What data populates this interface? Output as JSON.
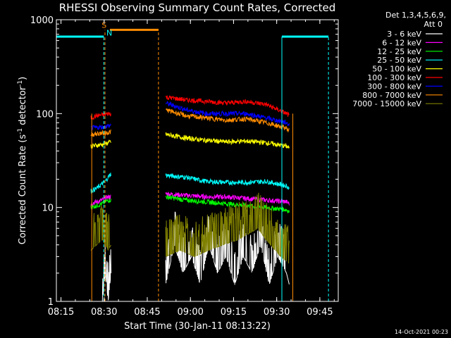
{
  "chart_data": {
    "type": "line",
    "title": "RHESSI Observing Summary Count Rates, Corrected",
    "xlabel": "Start Time (30-Jan-11 08:13:22)",
    "ylabel_parts": [
      "Corrected Count Rate (s",
      "-1",
      " detector",
      "-1",
      ")"
    ],
    "x_unit": "minutes since 08:13:22",
    "xlim": [
      0,
      98
    ],
    "ylim": [
      1,
      1000
    ],
    "yscale": "log",
    "x_ticks": [
      {
        "label": "08:15",
        "x": 1.6
      },
      {
        "label": "08:30",
        "x": 16.6
      },
      {
        "label": "08:45",
        "x": 31.6
      },
      {
        "label": "09:00",
        "x": 46.6
      },
      {
        "label": "09:15",
        "x": 61.6
      },
      {
        "label": "09:30",
        "x": 76.6
      },
      {
        "label": "09:45",
        "x": 91.6
      }
    ],
    "y_ticks": [
      {
        "label": "1",
        "y": 1
      },
      {
        "label": "10",
        "y": 10
      },
      {
        "label": "100",
        "y": 100
      },
      {
        "label": "1000",
        "y": 1000
      }
    ],
    "legend_header": [
      "Det 1,3,4,5,6,9,",
      "Att 0"
    ],
    "series": [
      {
        "name": "3 - 6 keV",
        "color": "#ffffff",
        "segments": [
          {
            "x": [
              16,
              17,
              18,
              19
            ],
            "y": [
              1,
              2,
              1,
              2
            ]
          },
          {
            "x": [
              38,
              41,
              44,
              47,
              50,
              53,
              56,
              59,
              62,
              65,
              68,
              71,
              74,
              77,
              80,
              81
            ],
            "y": [
              1.5,
              4,
              2,
              3,
              1.5,
              4,
              2,
              3,
              1.5,
              3,
              2,
              4,
              1.5,
              3,
              2,
              1.5
            ]
          }
        ]
      },
      {
        "name": "6 - 12 keV",
        "color": "#ff00ff",
        "segments": [
          {
            "x": [
              12,
              14,
              16,
              17,
              18,
              19
            ],
            "y": [
              11,
              11.5,
              12,
              12.5,
              13,
              13
            ]
          },
          {
            "x": [
              38,
              45,
              52,
              59,
              66,
              73,
              80,
              81
            ],
            "y": [
              14,
              13.5,
              13,
              13,
              12.5,
              12,
              11.5,
              11
            ]
          }
        ]
      },
      {
        "name": "12 - 25 keV",
        "color": "#00ff00",
        "segments": [
          {
            "x": [
              12,
              14,
              16,
              17,
              18,
              19
            ],
            "y": [
              10,
              10.5,
              11,
              11.5,
              12,
              12
            ]
          },
          {
            "x": [
              38,
              45,
              52,
              59,
              66,
              73,
              80,
              81
            ],
            "y": [
              13,
              12,
              11.5,
              11,
              10.5,
              10,
              9.5,
              9
            ]
          }
        ]
      },
      {
        "name": "25 - 50 keV",
        "color": "#00ffff",
        "segments": [
          {
            "x": [
              12,
              14,
              16,
              17,
              18,
              19
            ],
            "y": [
              15,
              16,
              18,
              19,
              21,
              23
            ]
          },
          {
            "x": [
              38,
              45,
              52,
              59,
              66,
              73,
              80,
              81
            ],
            "y": [
              22,
              21,
              19,
              18.5,
              18.5,
              19,
              17,
              16
            ]
          }
        ]
      },
      {
        "name": "50 - 100 keV",
        "color": "#ffff00",
        "segments": [
          {
            "x": [
              12,
              14,
              16,
              17,
              18,
              19
            ],
            "y": [
              45,
              46,
              47,
              48,
              49,
              50
            ]
          },
          {
            "x": [
              38,
              45,
              52,
              59,
              66,
              73,
              80,
              81
            ],
            "y": [
              60,
              55,
              52,
              50,
              51,
              49,
              45,
              43
            ]
          }
        ]
      },
      {
        "name": "100 - 300 keV",
        "color": "#ff0000",
        "segments": [
          {
            "x": [
              12,
              14,
              16,
              17,
              18,
              19
            ],
            "y": [
              90,
              95,
              97,
              98,
              100,
              100
            ]
          },
          {
            "x": [
              38,
              45,
              52,
              59,
              66,
              73,
              80,
              81
            ],
            "y": [
              150,
              140,
              135,
              130,
              135,
              125,
              100,
              95
            ]
          }
        ]
      },
      {
        "name": "300 - 800 keV",
        "color": "#0000ff",
        "segments": [
          {
            "x": [
              12,
              14,
              16,
              17,
              18,
              19
            ],
            "y": [
              70,
              71,
              72,
              73,
              74,
              75
            ]
          },
          {
            "x": [
              38,
              45,
              52,
              59,
              66,
              73,
              80,
              81
            ],
            "y": [
              130,
              110,
              100,
              100,
              100,
              90,
              80,
              76
            ]
          }
        ]
      },
      {
        "name": "800 - 7000 keV",
        "color": "#ff8c00",
        "segments": [
          {
            "x": [
              12,
              14,
              16,
              17,
              18,
              19
            ],
            "y": [
              60,
              61,
              62,
              62,
              63,
              64
            ]
          },
          {
            "x": [
              38,
              45,
              52,
              59,
              66,
              73,
              80,
              81
            ],
            "y": [
              110,
              95,
              90,
              85,
              88,
              80,
              70,
              65
            ]
          }
        ]
      },
      {
        "name": "7000 - 15000 keV",
        "color": "#808000",
        "segments": [
          {
            "x": [
              12,
              14,
              16,
              17,
              18,
              19
            ],
            "y": [
              3.5,
              4,
              4.5,
              4,
              3.5,
              4
            ]
          },
          {
            "x": [
              38,
              43,
              48,
              53,
              58,
              63,
              68,
              70,
              73,
              78,
              81
            ],
            "y": [
              3,
              3.5,
              3,
              3.5,
              4,
              4.5,
              5.5,
              6,
              4.5,
              3,
              2.5
            ]
          }
        ]
      }
    ],
    "annotations": [
      {
        "label": "S",
        "color": "#ff8c00",
        "x": 16.6,
        "y": 820
      },
      {
        "label": "N",
        "color": "#00ffff",
        "x": 18.4,
        "y": 680
      }
    ],
    "timestamp": "14-Oct-2021 00:23"
  }
}
